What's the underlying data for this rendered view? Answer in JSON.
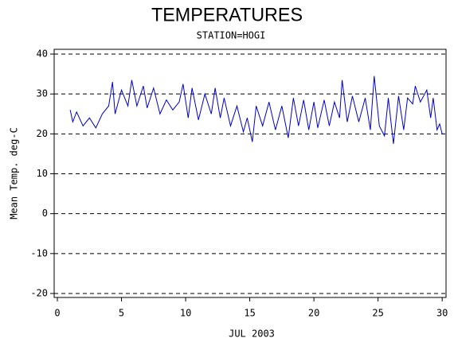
{
  "chart_data": {
    "type": "line",
    "title": "TEMPERATURES",
    "subtitle": "STATION=HOGI",
    "x_label": "JUL 2003",
    "y_label": "Mean Temp. deg-C",
    "x": [
      1,
      1.2,
      1.5,
      2,
      2.5,
      3,
      3.5,
      4,
      4.3,
      4.5,
      5,
      5.5,
      5.8,
      6.2,
      6.7,
      7,
      7.5,
      8,
      8.5,
      9,
      9.5,
      9.8,
      10.2,
      10.5,
      11,
      11.5,
      12,
      12.3,
      12.7,
      13,
      13.5,
      14,
      14.5,
      14.8,
      15.2,
      15.5,
      16,
      16.5,
      17,
      17.5,
      18,
      18.4,
      18.8,
      19.2,
      19.6,
      20,
      20.3,
      20.8,
      21.2,
      21.6,
      22,
      22.2,
      22.6,
      23,
      23.5,
      24,
      24.4,
      24.7,
      25.1,
      25.5,
      25.8,
      26.2,
      26.6,
      27,
      27.3,
      27.7,
      27.9,
      28.3,
      28.8,
      29.1,
      29.3,
      29.6,
      29.8,
      30,
      30.2
    ],
    "series": [
      {
        "name": "Mean Temp.",
        "color": "#0000cc",
        "values": [
          26,
          23,
          25.5,
          22,
          24,
          21.5,
          25,
          27,
          33,
          25,
          31,
          27,
          33.5,
          27,
          32,
          26.5,
          31.5,
          25,
          28.5,
          26,
          28,
          32.5,
          24,
          31.5,
          23.5,
          30,
          25,
          31.5,
          24,
          29,
          22,
          27,
          20.5,
          24,
          18,
          27,
          22,
          28,
          21,
          27,
          19,
          29,
          22,
          28.5,
          21,
          28,
          21.5,
          28.5,
          22,
          28,
          24,
          33.5,
          23,
          29.5,
          23,
          29,
          21,
          34.5,
          22,
          19.5,
          29,
          17.5,
          29.5,
          21,
          29,
          27.5,
          32,
          28,
          31,
          24,
          29,
          21,
          22.5,
          20,
          20
        ]
      }
    ],
    "xlim": [
      -0.25,
      30.3
    ],
    "ylim": [
      -21,
      41.2
    ],
    "xticks": [
      0,
      5,
      10,
      15,
      20,
      25,
      30
    ],
    "yticks": [
      -20,
      -10,
      0,
      10,
      20,
      30,
      40
    ],
    "grid": true
  }
}
